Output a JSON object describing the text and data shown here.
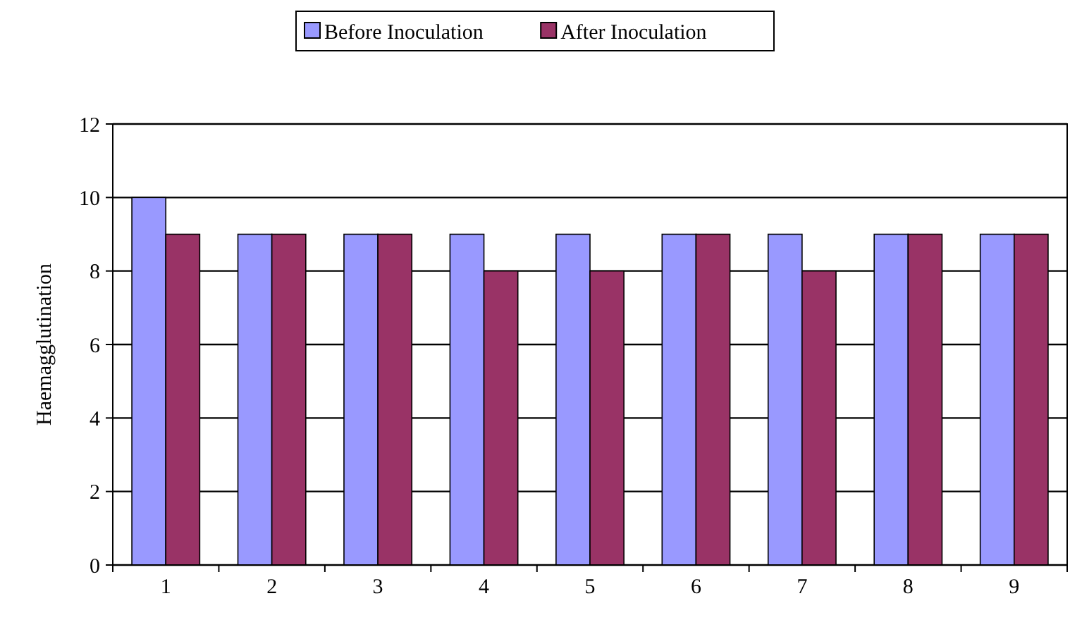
{
  "chart_data": {
    "type": "bar",
    "categories": [
      "1",
      "2",
      "3",
      "4",
      "5",
      "6",
      "7",
      "8",
      "9"
    ],
    "series": [
      {
        "name": "Before Inoculation",
        "color": "#9999ff",
        "values": [
          10,
          9,
          9,
          9,
          9,
          9,
          9,
          9,
          9
        ]
      },
      {
        "name": "After Inoculation",
        "color": "#993366",
        "values": [
          9,
          9,
          9,
          8,
          8,
          9,
          8,
          9,
          9
        ]
      }
    ],
    "ylabel": "Haemagglutination",
    "ylim": [
      0,
      12
    ],
    "yticks": [
      0,
      2,
      4,
      6,
      8,
      10,
      12
    ],
    "grid": "y",
    "legend": "top"
  }
}
